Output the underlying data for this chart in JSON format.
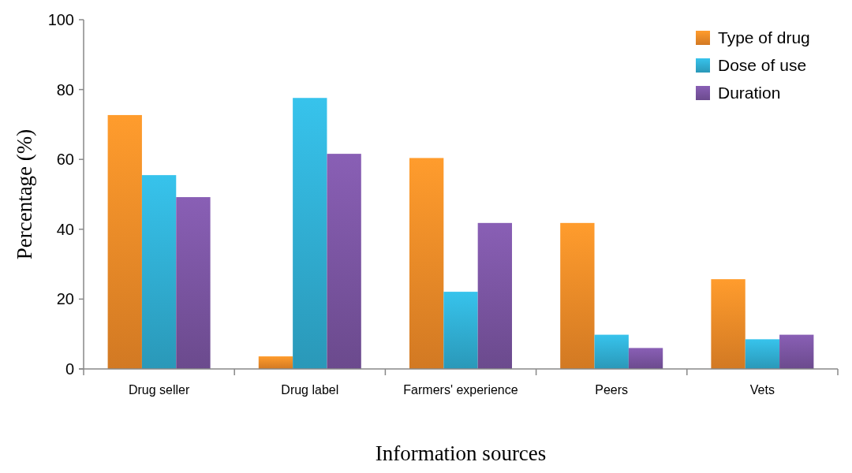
{
  "chart_data": {
    "type": "bar",
    "xlabel": "Information sources",
    "ylabel": "Percentage (%)",
    "categories": [
      "Drug seller",
      "Drug label",
      "Farmers' experience",
      "Peers",
      "Vets"
    ],
    "series": [
      {
        "name": "Type of drug",
        "color": "#f28c28",
        "values": [
          72.7,
          3.6,
          60.4,
          41.8,
          25.7
        ]
      },
      {
        "name": "Dose of use",
        "color": "#31afd4",
        "values": [
          55.5,
          77.6,
          22.1,
          9.8,
          8.5
        ]
      },
      {
        "name": "Duration",
        "color": "#7b55a3",
        "values": [
          49.2,
          61.6,
          41.8,
          6,
          9.8
        ]
      }
    ],
    "ylim": [
      0,
      100
    ],
    "yticks": [
      0,
      20,
      40,
      60,
      80,
      100
    ],
    "grid": false,
    "legend": "top right"
  }
}
